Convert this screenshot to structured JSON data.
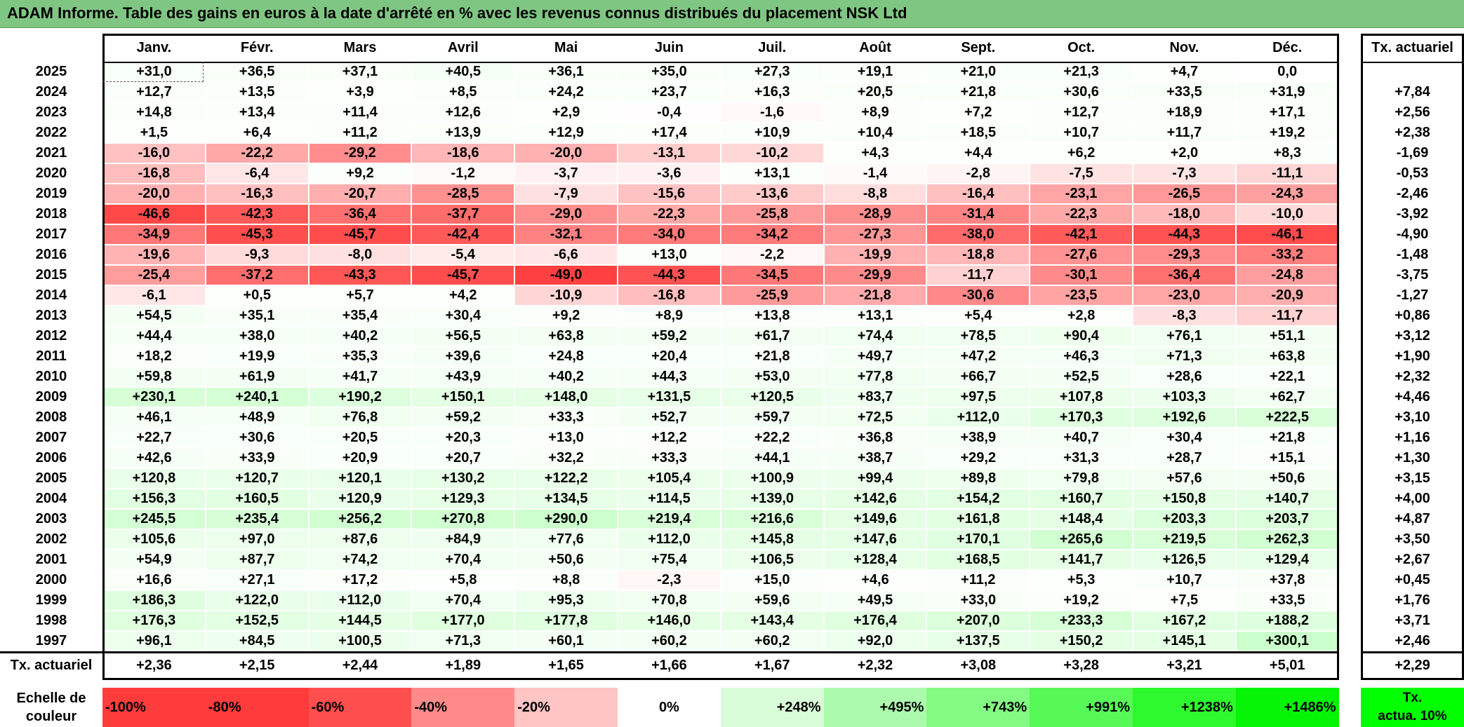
{
  "title": "ADAM Informe. Table des gains en euros à la date d'arrêté en % avec les revenus connus distribués du placement NSK Ltd",
  "months": [
    "Janv.",
    "Févr.",
    "Mars",
    "Avril",
    "Mai",
    "Juin",
    "Juil.",
    "Août",
    "Sept.",
    "Oct.",
    "Nov.",
    "Déc."
  ],
  "tx_header": "Tx. actuariel",
  "rows": [
    {
      "year": "2025",
      "values": [
        "+31,0",
        "+36,5",
        "+37,1",
        "+40,5",
        "+36,1",
        "+35,0",
        "+27,3",
        "+19,1",
        "+21,0",
        "+21,3",
        "+4,7",
        "0,0"
      ],
      "tx": ""
    },
    {
      "year": "2024",
      "values": [
        "+12,7",
        "+13,5",
        "+3,9",
        "+8,5",
        "+24,2",
        "+23,7",
        "+16,3",
        "+20,5",
        "+21,8",
        "+30,6",
        "+33,5",
        "+31,9"
      ],
      "tx": "+7,84"
    },
    {
      "year": "2023",
      "values": [
        "+14,8",
        "+13,4",
        "+11,4",
        "+12,6",
        "+2,9",
        "-0,4",
        "-1,6",
        "+8,9",
        "+7,2",
        "+12,7",
        "+18,9",
        "+17,1"
      ],
      "tx": "+2,56"
    },
    {
      "year": "2022",
      "values": [
        "+1,5",
        "+6,4",
        "+11,2",
        "+13,9",
        "+12,9",
        "+17,4",
        "+10,9",
        "+10,4",
        "+18,5",
        "+10,7",
        "+11,7",
        "+19,2"
      ],
      "tx": "+2,38"
    },
    {
      "year": "2021",
      "values": [
        "-16,0",
        "-22,2",
        "-29,2",
        "-18,6",
        "-20,0",
        "-13,1",
        "-10,2",
        "+4,3",
        "+4,4",
        "+6,2",
        "+2,0",
        "+8,3"
      ],
      "tx": "-1,69"
    },
    {
      "year": "2020",
      "values": [
        "-16,8",
        "-6,4",
        "+9,2",
        "-1,2",
        "-3,7",
        "-3,6",
        "+13,1",
        "-1,4",
        "-2,8",
        "-7,5",
        "-7,3",
        "-11,1"
      ],
      "tx": "-0,53"
    },
    {
      "year": "2019",
      "values": [
        "-20,0",
        "-16,3",
        "-20,7",
        "-28,5",
        "-7,9",
        "-15,6",
        "-13,6",
        "-8,8",
        "-16,4",
        "-23,1",
        "-26,5",
        "-24,3"
      ],
      "tx": "-2,46"
    },
    {
      "year": "2018",
      "values": [
        "-46,6",
        "-42,3",
        "-36,4",
        "-37,7",
        "-29,0",
        "-22,3",
        "-25,8",
        "-28,9",
        "-31,4",
        "-22,3",
        "-18,0",
        "-10,0"
      ],
      "tx": "-3,92"
    },
    {
      "year": "2017",
      "values": [
        "-34,9",
        "-45,3",
        "-45,7",
        "-42,4",
        "-32,1",
        "-34,0",
        "-34,2",
        "-27,3",
        "-38,0",
        "-42,1",
        "-44,3",
        "-46,1"
      ],
      "tx": "-4,90"
    },
    {
      "year": "2016",
      "values": [
        "-19,6",
        "-9,3",
        "-8,0",
        "-5,4",
        "-6,6",
        "+13,0",
        "-2,2",
        "-19,9",
        "-18,8",
        "-27,6",
        "-29,3",
        "-33,2"
      ],
      "tx": "-1,48"
    },
    {
      "year": "2015",
      "values": [
        "-25,4",
        "-37,2",
        "-43,3",
        "-45,7",
        "-49,0",
        "-44,3",
        "-34,5",
        "-29,9",
        "-11,7",
        "-30,1",
        "-36,4",
        "-24,8"
      ],
      "tx": "-3,75"
    },
    {
      "year": "2014",
      "values": [
        "-6,1",
        "+0,5",
        "+5,7",
        "+4,2",
        "-10,9",
        "-16,8",
        "-25,9",
        "-21,8",
        "-30,6",
        "-23,5",
        "-23,0",
        "-20,9"
      ],
      "tx": "-1,27"
    },
    {
      "year": "2013",
      "values": [
        "+54,5",
        "+35,1",
        "+35,4",
        "+30,4",
        "+9,2",
        "+8,9",
        "+13,8",
        "+13,1",
        "+5,4",
        "+2,8",
        "-8,3",
        "-11,7"
      ],
      "tx": "+0,86"
    },
    {
      "year": "2012",
      "values": [
        "+44,4",
        "+38,0",
        "+40,2",
        "+56,5",
        "+63,8",
        "+59,2",
        "+61,7",
        "+74,4",
        "+78,5",
        "+90,4",
        "+76,1",
        "+51,1"
      ],
      "tx": "+3,12"
    },
    {
      "year": "2011",
      "values": [
        "+18,2",
        "+19,9",
        "+35,3",
        "+39,6",
        "+24,8",
        "+20,4",
        "+21,8",
        "+49,7",
        "+47,2",
        "+46,3",
        "+71,3",
        "+63,8"
      ],
      "tx": "+1,90"
    },
    {
      "year": "2010",
      "values": [
        "+59,8",
        "+61,9",
        "+41,7",
        "+43,9",
        "+40,2",
        "+44,3",
        "+53,0",
        "+77,8",
        "+66,7",
        "+52,5",
        "+28,6",
        "+22,1"
      ],
      "tx": "+2,32"
    },
    {
      "year": "2009",
      "values": [
        "+230,1",
        "+240,1",
        "+190,2",
        "+150,1",
        "+148,0",
        "+131,5",
        "+120,5",
        "+83,7",
        "+97,5",
        "+107,8",
        "+103,3",
        "+62,7"
      ],
      "tx": "+4,46"
    },
    {
      "year": "2008",
      "values": [
        "+46,1",
        "+48,9",
        "+76,8",
        "+59,2",
        "+33,3",
        "+52,7",
        "+59,7",
        "+72,5",
        "+112,0",
        "+170,3",
        "+192,6",
        "+222,5"
      ],
      "tx": "+3,10"
    },
    {
      "year": "2007",
      "values": [
        "+22,7",
        "+30,6",
        "+20,5",
        "+20,3",
        "+13,0",
        "+12,2",
        "+22,2",
        "+36,8",
        "+38,9",
        "+40,7",
        "+30,4",
        "+21,8"
      ],
      "tx": "+1,16"
    },
    {
      "year": "2006",
      "values": [
        "+42,6",
        "+33,9",
        "+20,9",
        "+20,7",
        "+32,2",
        "+33,3",
        "+44,1",
        "+38,7",
        "+29,2",
        "+31,3",
        "+28,7",
        "+15,1"
      ],
      "tx": "+1,30"
    },
    {
      "year": "2005",
      "values": [
        "+120,8",
        "+120,7",
        "+120,1",
        "+130,2",
        "+122,2",
        "+105,4",
        "+100,9",
        "+99,4",
        "+89,8",
        "+79,8",
        "+57,6",
        "+50,6"
      ],
      "tx": "+3,15"
    },
    {
      "year": "2004",
      "values": [
        "+156,3",
        "+160,5",
        "+120,9",
        "+129,3",
        "+134,5",
        "+114,5",
        "+139,0",
        "+142,6",
        "+154,2",
        "+160,7",
        "+150,8",
        "+140,7"
      ],
      "tx": "+4,00"
    },
    {
      "year": "2003",
      "values": [
        "+245,5",
        "+235,4",
        "+256,2",
        "+270,8",
        "+290,0",
        "+219,4",
        "+216,6",
        "+149,6",
        "+161,8",
        "+148,4",
        "+203,3",
        "+203,7"
      ],
      "tx": "+4,87"
    },
    {
      "year": "2002",
      "values": [
        "+105,6",
        "+97,0",
        "+87,6",
        "+84,9",
        "+77,6",
        "+112,0",
        "+145,8",
        "+147,6",
        "+170,1",
        "+265,6",
        "+219,5",
        "+262,3"
      ],
      "tx": "+3,50"
    },
    {
      "year": "2001",
      "values": [
        "+54,9",
        "+87,7",
        "+74,2",
        "+70,4",
        "+50,6",
        "+75,4",
        "+106,5",
        "+128,4",
        "+168,5",
        "+141,7",
        "+126,5",
        "+129,4"
      ],
      "tx": "+2,67"
    },
    {
      "year": "2000",
      "values": [
        "+16,6",
        "+27,1",
        "+17,2",
        "+5,8",
        "+8,8",
        "-2,3",
        "+15,0",
        "+4,6",
        "+11,2",
        "+5,3",
        "+10,7",
        "+37,8"
      ],
      "tx": "+0,45"
    },
    {
      "year": "1999",
      "values": [
        "+186,3",
        "+122,0",
        "+112,0",
        "+70,4",
        "+95,3",
        "+70,8",
        "+59,6",
        "+49,5",
        "+33,0",
        "+19,2",
        "+7,5",
        "+33,5"
      ],
      "tx": "+1,76"
    },
    {
      "year": "1998",
      "values": [
        "+176,3",
        "+152,5",
        "+144,5",
        "+177,0",
        "+177,8",
        "+146,0",
        "+143,4",
        "+176,4",
        "+207,0",
        "+233,3",
        "+167,2",
        "+188,2"
      ],
      "tx": "+3,71"
    },
    {
      "year": "1997",
      "values": [
        "+96,1",
        "+84,5",
        "+100,5",
        "+71,3",
        "+60,1",
        "+60,2",
        "+60,2",
        "+92,0",
        "+137,5",
        "+150,2",
        "+145,1",
        "+300,1"
      ],
      "tx": "+2,46"
    }
  ],
  "footer": {
    "label": "Tx. actuariel",
    "values": [
      "+2,36",
      "+2,15",
      "+2,44",
      "+1,89",
      "+1,65",
      "+1,66",
      "+1,67",
      "+2,32",
      "+3,08",
      "+3,28",
      "+3,21",
      "+5,01"
    ],
    "tx": "+2,29"
  },
  "scale": {
    "label_line1": "Echelle de",
    "label_line2": "couleur",
    "items": [
      {
        "label": "-100%",
        "color": "#fe3c3c",
        "align": "left"
      },
      {
        "label": "-80%",
        "color": "#fe3c3c",
        "align": "left"
      },
      {
        "label": "-60%",
        "color": "#fe4e4e",
        "align": "left"
      },
      {
        "label": "-40%",
        "color": "#fe8a8a",
        "align": "left"
      },
      {
        "label": "-20%",
        "color": "#ffc4c4",
        "align": "left"
      },
      {
        "label": "0%",
        "color": "#ffffff",
        "align": "center"
      },
      {
        "label": "+248%",
        "color": "#d8fdd8",
        "align": "right"
      },
      {
        "label": "+495%",
        "color": "#acfbac",
        "align": "right"
      },
      {
        "label": "+743%",
        "color": "#83fb83",
        "align": "right"
      },
      {
        "label": "+991%",
        "color": "#57f957",
        "align": "right"
      },
      {
        "label": "+1238%",
        "color": "#2ef82e",
        "align": "right"
      },
      {
        "label": "+1486%",
        "color": "#06f506",
        "align": "right"
      }
    ],
    "tx_line1": "Tx.",
    "tx_line2": "actua. 10%",
    "tx_color": "#00ff00"
  },
  "colors": {
    "title_bg": "#80c683",
    "neg_strong": "#fe3c3c",
    "pos_strong": "#00ff00"
  }
}
